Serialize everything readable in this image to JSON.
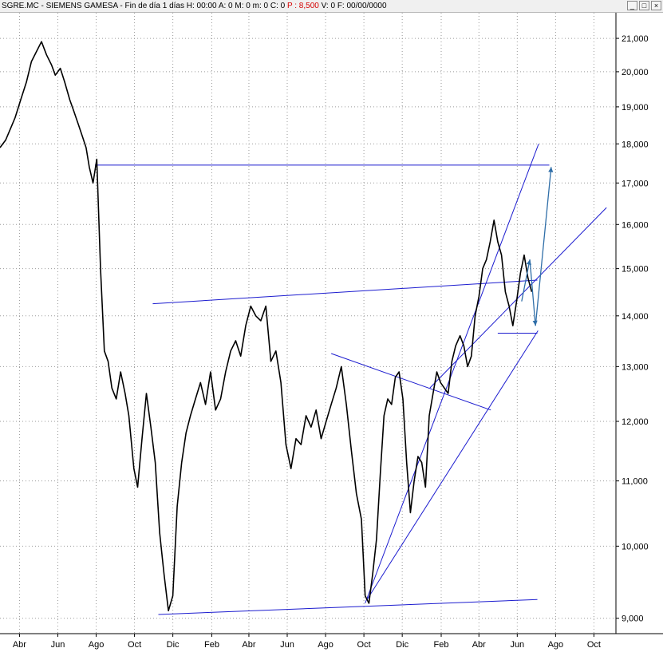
{
  "window": {
    "symbol": "SGRE.MC",
    "name": "SIEMENS GAMESA",
    "period": "Fin de día 1 días",
    "h": "H: 00:00",
    "a": "A: 0",
    "m": "M: 0",
    "mn": "m: 0",
    "c": "C: 0",
    "p": "P : 8,500",
    "v": "V: 0",
    "f": "F: 00/00/0000",
    "buttons": {
      "minimize": "_",
      "maximize": "□",
      "close": "×"
    }
  },
  "colors": {
    "price": "#000000",
    "trendline": "#1c1ccf",
    "projection": "#2f6ea8",
    "grid": "#9a9a9a",
    "titlebar_bg": "#f0f0f0",
    "highlight": "#d40000"
  },
  "chart_data": {
    "type": "line",
    "scale": "log",
    "grid": true,
    "ylim": [
      8800,
      21800
    ],
    "y_ticks": [
      9000,
      10000,
      11000,
      12000,
      13000,
      14000,
      15000,
      16000,
      17000,
      18000,
      19000,
      20000,
      21000
    ],
    "y_tick_labels": [
      "9,000",
      "10,000",
      "11,000",
      "12,000",
      "13,000",
      "14,000",
      "15,000",
      "16,000",
      "17,000",
      "18,000",
      "19,000",
      "20,000",
      "21,000"
    ],
    "x_ticks": [
      "2018-04-01",
      "2018-06-01",
      "2018-08-01",
      "2018-10-01",
      "2018-12-01",
      "2019-02-01",
      "2019-04-01",
      "2019-06-01",
      "2019-08-01",
      "2019-10-01",
      "2019-12-01",
      "2020-02-01",
      "2020-04-01",
      "2020-06-01",
      "2020-08-01",
      "2020-10-01"
    ],
    "x_tick_labels": [
      "Abr",
      "Jun",
      "Ago",
      "Oct",
      "Dic",
      "Feb",
      "Abr",
      "Jun",
      "Ago",
      "Oct",
      "Dic",
      "Feb",
      "Abr",
      "Jun",
      "Ago",
      "Oct"
    ],
    "series": [
      {
        "x": [
          "2018-03-01",
          "2018-03-10",
          "2018-03-20",
          "2018-03-25",
          "2018-04-03",
          "2018-04-12",
          "2018-04-20",
          "2018-04-28",
          "2018-05-06",
          "2018-05-14",
          "2018-05-22",
          "2018-05-28",
          "2018-06-05",
          "2018-06-12",
          "2018-06-20",
          "2018-06-26",
          "2018-07-04",
          "2018-07-10",
          "2018-07-16",
          "2018-07-21",
          "2018-07-27",
          "2018-08-02",
          "2018-08-08",
          "2018-08-14",
          "2018-08-20",
          "2018-08-26",
          "2018-09-02",
          "2018-09-09",
          "2018-09-16",
          "2018-09-22",
          "2018-09-30",
          "2018-10-06",
          "2018-10-13",
          "2018-10-20",
          "2018-10-27",
          "2018-11-03",
          "2018-11-10",
          "2018-11-17",
          "2018-11-24",
          "2018-12-01",
          "2018-12-08",
          "2018-12-15",
          "2018-12-22",
          "2018-12-29",
          "2019-01-06",
          "2019-01-14",
          "2019-01-22",
          "2019-01-30",
          "2019-02-07",
          "2019-02-15",
          "2019-02-23",
          "2019-03-03",
          "2019-03-11",
          "2019-03-19",
          "2019-03-27",
          "2019-04-04",
          "2019-04-12",
          "2019-04-20",
          "2019-04-28",
          "2019-05-06",
          "2019-05-14",
          "2019-05-22",
          "2019-05-30",
          "2019-06-07",
          "2019-06-15",
          "2019-06-23",
          "2019-07-01",
          "2019-07-09",
          "2019-07-17",
          "2019-07-25",
          "2019-08-02",
          "2019-08-10",
          "2019-08-18",
          "2019-08-26",
          "2019-09-03",
          "2019-09-11",
          "2019-09-19",
          "2019-09-27",
          "2019-10-03",
          "2019-10-09",
          "2019-10-15",
          "2019-10-21",
          "2019-10-27",
          "2019-11-02",
          "2019-11-08",
          "2019-11-14",
          "2019-11-20",
          "2019-11-26",
          "2019-12-02",
          "2019-12-08",
          "2019-12-14",
          "2019-12-20",
          "2019-12-26",
          "2020-01-01",
          "2020-01-07",
          "2020-01-13",
          "2020-01-19",
          "2020-01-25",
          "2020-01-31",
          "2020-02-06",
          "2020-02-12",
          "2020-02-18",
          "2020-02-24",
          "2020-03-02",
          "2020-03-08",
          "2020-03-14",
          "2020-03-20",
          "2020-03-26",
          "2020-04-01",
          "2020-04-07",
          "2020-04-13",
          "2020-04-19",
          "2020-04-25",
          "2020-05-01",
          "2020-05-07",
          "2020-05-13",
          "2020-05-19",
          "2020-05-25",
          "2020-05-31",
          "2020-06-06",
          "2020-06-12",
          "2020-06-18",
          "2020-06-24"
        ],
        "values": [
          17900,
          18100,
          18500,
          18700,
          19200,
          19700,
          20300,
          20600,
          20900,
          20500,
          20200,
          19900,
          20100,
          19700,
          19200,
          18900,
          18500,
          18200,
          17900,
          17400,
          17000,
          17600,
          15000,
          13300,
          13100,
          12600,
          12400,
          12900,
          12500,
          12100,
          11200,
          10900,
          11700,
          12500,
          11900,
          11300,
          10200,
          9600,
          9100,
          9300,
          10600,
          11300,
          11800,
          12100,
          12400,
          12700,
          12300,
          12900,
          12200,
          12400,
          12900,
          13300,
          13500,
          13200,
          13800,
          14200,
          14000,
          13900,
          14200,
          13100,
          13300,
          12700,
          11600,
          11200,
          11700,
          11600,
          12100,
          11900,
          12200,
          11700,
          12000,
          12300,
          12600,
          13000,
          12300,
          11500,
          10800,
          10400,
          9300,
          9200,
          9600,
          10100,
          11100,
          12100,
          12400,
          12300,
          12800,
          12900,
          12400,
          11300,
          10500,
          11000,
          11400,
          11300,
          10900,
          12100,
          12500,
          12900,
          12700,
          12600,
          12500,
          13100,
          13400,
          13600,
          13400,
          13000,
          13200,
          14000,
          14400,
          15000,
          15200,
          15600,
          16100,
          15600,
          15300,
          14500,
          14200,
          13800,
          14300,
          14900,
          15300,
          14800,
          14500
        ]
      }
    ],
    "trendlines": [
      {
        "from": [
          "2018-07-30",
          17450
        ],
        "to": [
          "2020-07-22",
          17450
        ]
      },
      {
        "from": [
          "2018-10-30",
          14250
        ],
        "to": [
          "2020-07-03",
          14750
        ]
      },
      {
        "from": [
          "2018-11-08",
          9050
        ],
        "to": [
          "2020-07-03",
          9250
        ]
      },
      {
        "from": [
          "2019-08-10",
          13250
        ],
        "to": [
          "2020-04-20",
          12200
        ]
      },
      {
        "from": [
          "2019-10-03",
          9200
        ],
        "to": [
          "2020-07-05",
          18000
        ]
      },
      {
        "from": [
          "2019-10-06",
          9250
        ],
        "to": [
          "2020-07-04",
          13700
        ]
      },
      {
        "from": [
          "2020-01-14",
          12600
        ],
        "to": [
          "2020-10-21",
          16400
        ]
      },
      {
        "from": [
          "2020-05-01",
          13650
        ],
        "to": [
          "2020-07-03",
          13650
        ]
      }
    ],
    "projection": [
      {
        "from": [
          "2020-06-08",
          14300
        ],
        "to": [
          "2020-06-21",
          15200
        ]
      },
      {
        "from": [
          "2020-06-21",
          15200
        ],
        "to": [
          "2020-06-30",
          13800
        ]
      },
      {
        "from": [
          "2020-06-30",
          13800
        ],
        "to": [
          "2020-07-25",
          17400
        ]
      }
    ]
  }
}
